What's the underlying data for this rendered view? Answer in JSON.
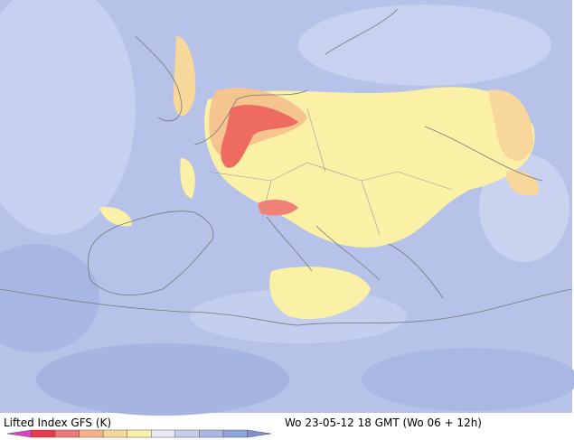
{
  "legend": {
    "title": "Lifted Index GFS (K)",
    "colors": [
      "#e040c0",
      "#e83a4a",
      "#f07a78",
      "#f5b08a",
      "#f8d89a",
      "#fbf0a8",
      "#e6e8f4",
      "#c4cdec",
      "#a9b8e4",
      "#8fa3dc",
      "#7a90d4"
    ]
  },
  "timestamp": "Wo 23-05-12 18 GMT (Wo 06 + 12h)"
}
